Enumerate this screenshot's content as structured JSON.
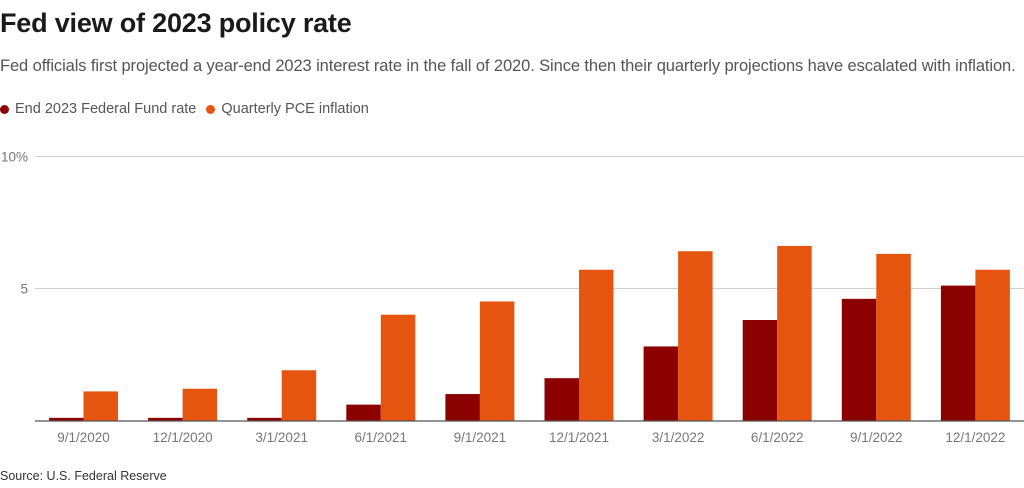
{
  "chart_data": {
    "type": "bar",
    "title": "Fed view of 2023 policy rate",
    "subtitle": "Fed officials first projected a year-end 2023 interest rate in the fall of 2020. Since then their quarterly projections have escalated with inflation.",
    "xlabel": "",
    "ylabel": "",
    "ylim": [
      0,
      10
    ],
    "yticks": [
      {
        "value": 5,
        "label": "5"
      },
      {
        "value": 10,
        "label": "10%"
      }
    ],
    "grid": true,
    "legend_position": "top-left",
    "categories": [
      "9/1/2020",
      "12/1/2020",
      "3/1/2021",
      "6/1/2021",
      "9/1/2021",
      "12/1/2021",
      "3/1/2022",
      "6/1/2022",
      "9/1/2022",
      "12/1/2022"
    ],
    "series": [
      {
        "name": "End 2023 Federal Fund rate",
        "color": "#8b0000",
        "values": [
          0.1,
          0.1,
          0.1,
          0.6,
          1.0,
          1.6,
          2.8,
          3.8,
          4.6,
          5.1
        ]
      },
      {
        "name": "Quarterly PCE inflation",
        "color": "#e5550f",
        "values": [
          1.1,
          1.2,
          1.9,
          4.0,
          4.5,
          5.7,
          6.4,
          6.6,
          6.3,
          5.7
        ]
      }
    ],
    "source": "Source: U.S. Federal Reserve"
  }
}
